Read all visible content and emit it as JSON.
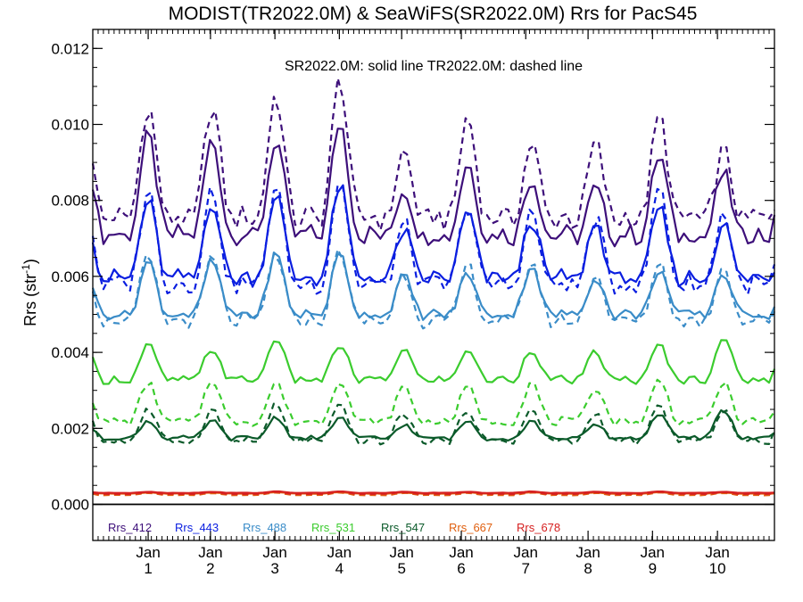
{
  "chart_data": {
    "type": "line",
    "title": "MODIST(TR2022.0M) & SeaWiFS(SR2022.0M)  Rrs for PacS45",
    "note": "SR2022.0M: solid line   TR2022.0M: dashed line",
    "ylabel": "Rrs (str",
    "ylabel_sup": "-1",
    "ylabel_close": ")",
    "ylim": [
      -0.00095,
      0.0125
    ],
    "xlim": [
      0,
      128
    ],
    "y_ticks": [
      {
        "value": 0.0,
        "label": "0.000"
      },
      {
        "value": 0.002,
        "label": "0.002"
      },
      {
        "value": 0.004,
        "label": "0.004"
      },
      {
        "value": 0.006,
        "label": "0.006"
      },
      {
        "value": 0.008,
        "label": "0.008"
      },
      {
        "value": 0.01,
        "label": "0.010"
      },
      {
        "value": 0.012,
        "label": "0.012"
      }
    ],
    "x_ticks": [
      {
        "x": 10.4,
        "month": "Jan",
        "year": "1"
      },
      {
        "x": 22.1,
        "month": "Jan",
        "year": "2"
      },
      {
        "x": 34.2,
        "month": "Jan",
        "year": "3"
      },
      {
        "x": 46.3,
        "month": "Jan",
        "year": "4"
      },
      {
        "x": 58.0,
        "month": "Jan",
        "year": "5"
      },
      {
        "x": 69.2,
        "month": "Jan",
        "year": "6"
      },
      {
        "x": 81.3,
        "month": "Jan",
        "year": "7"
      },
      {
        "x": 93.0,
        "month": "Jan",
        "year": "8"
      },
      {
        "x": 105.1,
        "month": "Jan",
        "year": "9"
      },
      {
        "x": 117.3,
        "month": "Jan",
        "year": "10"
      }
    ],
    "zero_line": 0.0,
    "series": [
      {
        "name": "Rrs_412",
        "color": "#3d0f7a",
        "solid": {
          "base": 0.0069,
          "amp": 0.0027,
          "peaks": [
            0.0097,
            0.0096,
            0.0096,
            0.0101,
            0.0083,
            0.009,
            0.0086,
            0.0083,
            0.0092,
            0.0087
          ]
        },
        "dashed": {
          "base": 0.0073,
          "amp": 0.0033,
          "peaks": [
            0.0105,
            0.0105,
            0.0108,
            0.0112,
            0.0093,
            0.0102,
            0.0095,
            0.0095,
            0.0102,
            0.0093
          ]
        }
      },
      {
        "name": "Rrs_443",
        "color": "#0a1ee0",
        "solid": {
          "base": 0.0058,
          "amp": 0.0022,
          "peaks": [
            0.008,
            0.008,
            0.0082,
            0.0084,
            0.0072,
            0.0077,
            0.0075,
            0.0074,
            0.0078,
            0.0074
          ]
        },
        "dashed": {
          "base": 0.0056,
          "amp": 0.0026,
          "peaks": [
            0.0083,
            0.0083,
            0.0084,
            0.0086,
            0.0074,
            0.0079,
            0.0077,
            0.0075,
            0.0084,
            0.0077
          ]
        }
      },
      {
        "name": "Rrs_488",
        "color": "#3a8cc8",
        "solid": {
          "base": 0.0049,
          "amp": 0.0014,
          "peaks": [
            0.0064,
            0.0064,
            0.0066,
            0.0066,
            0.006,
            0.0061,
            0.0063,
            0.006,
            0.0062,
            0.0061
          ]
        },
        "dashed": {
          "base": 0.0047,
          "amp": 0.0018,
          "peaks": [
            0.0065,
            0.0065,
            0.0066,
            0.0067,
            0.0061,
            0.0063,
            0.0064,
            0.0061,
            0.0064,
            0.0063
          ]
        }
      },
      {
        "name": "Rrs_531",
        "color": "#3bcc2e",
        "solid": {
          "base": 0.0032,
          "amp": 0.0011,
          "peaks": [
            0.0042,
            0.0041,
            0.0044,
            0.0042,
            0.0041,
            0.0041,
            0.0041,
            0.004,
            0.0042,
            0.0044
          ]
        },
        "dashed": {
          "base": 0.0021,
          "amp": 0.0011,
          "peaks": [
            0.0032,
            0.0033,
            0.0032,
            0.0033,
            0.0031,
            0.0031,
            0.0032,
            0.0031,
            0.0033,
            0.0032
          ]
        }
      },
      {
        "name": "Rrs_547",
        "color": "#0b5a2a",
        "solid": {
          "base": 0.0017,
          "amp": 0.0006,
          "peaks": [
            0.0022,
            0.0022,
            0.0023,
            0.0023,
            0.0021,
            0.0022,
            0.0022,
            0.0021,
            0.0024,
            0.0025
          ]
        },
        "dashed": {
          "base": 0.0016,
          "amp": 0.001,
          "peaks": [
            0.0025,
            0.0025,
            0.0026,
            0.0026,
            0.0024,
            0.0025,
            0.0025,
            0.0024,
            0.0026,
            0.0025
          ]
        }
      },
      {
        "name": "Rrs_667",
        "color": "#e06010",
        "solid": {
          "base": 0.00028,
          "amp": 5e-05,
          "peaks": [
            0.00031,
            0.00031,
            0.00032,
            0.00032,
            0.00031,
            0.00031,
            0.00032,
            0.00031,
            0.00032,
            0.00031
          ]
        },
        "dashed": {
          "base": 0.00024,
          "amp": 6e-05,
          "peaks": [
            0.0003,
            0.0003,
            0.00031,
            0.00031,
            0.0003,
            0.0003,
            0.00031,
            0.0003,
            0.00031,
            0.0003
          ]
        }
      },
      {
        "name": "Rrs_678",
        "color": "#d62020",
        "solid": {
          "base": 0.0003,
          "amp": 4e-05,
          "peaks": [
            0.00033,
            0.00033,
            0.00034,
            0.00034,
            0.00033,
            0.00033,
            0.00034,
            0.00033,
            0.00034,
            0.00033
          ]
        },
        "dashed": {
          "base": 0.00027,
          "amp": 5e-05,
          "peaks": [
            0.00032,
            0.00032,
            0.00033,
            0.00033,
            0.00032,
            0.00032,
            0.00033,
            0.00032,
            0.00033,
            0.00032
          ]
        }
      }
    ]
  }
}
